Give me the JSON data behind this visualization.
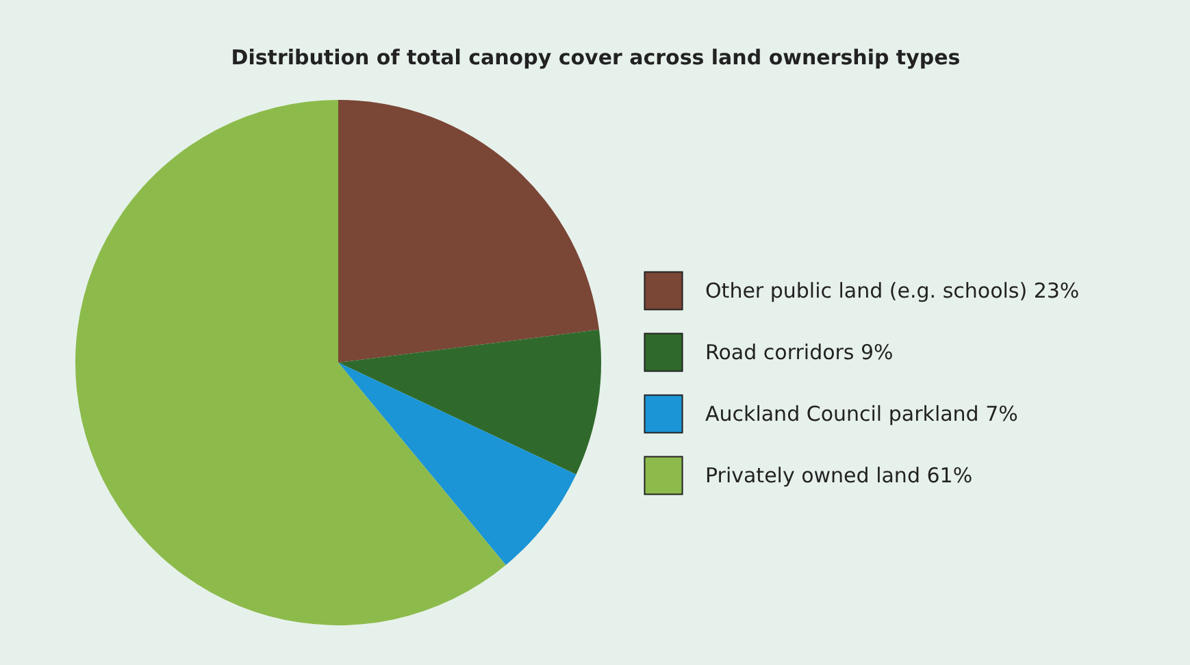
{
  "chart_data": {
    "type": "pie",
    "title": "Distribution of total canopy cover across land ownership types",
    "categories": [
      "Other public land (e.g. schools) 23%",
      "Road corridors 9%",
      "Auckland Council parkland 7%",
      "Privately owned land 61%"
    ],
    "values": [
      23,
      9,
      7,
      61
    ],
    "colors": [
      "#7a4636",
      "#2f6a2c",
      "#1b95d6",
      "#8cbb4b"
    ],
    "legend": "right"
  }
}
